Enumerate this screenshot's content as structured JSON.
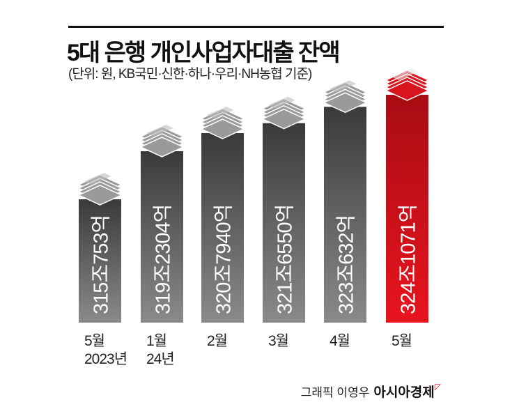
{
  "header": {
    "title": "5대 은행 개인사업자대출 잔액",
    "subtitle": "(단위: 원, KB국민·신한·하나·우리·NH농협 기준)"
  },
  "chart_data": {
    "type": "bar",
    "title": "5대 은행 개인사업자대출 잔액",
    "unit": "억원",
    "categories": [
      [
        "5월",
        "2023년"
      ],
      [
        "1월",
        "24년"
      ],
      [
        "2월",
        ""
      ],
      [
        "3월",
        ""
      ],
      [
        "4월",
        ""
      ],
      [
        "5월",
        ""
      ]
    ],
    "values": [
      3150753,
      3192304,
      3207940,
      3216550,
      3230632,
      3241071
    ],
    "labels": [
      "315조753억",
      "319조2304억",
      "320조7940억",
      "321조6550억",
      "323조632억",
      "324조1071억"
    ],
    "highlight_index": 5,
    "colors": {
      "bar": "#4a4a4a",
      "highlight": "#c8101a",
      "stack": "#9a9a9a"
    }
  },
  "footer": {
    "credit": "그래픽 이영우",
    "brand": "아시아경제",
    "brand_mark": "ᄆ"
  }
}
